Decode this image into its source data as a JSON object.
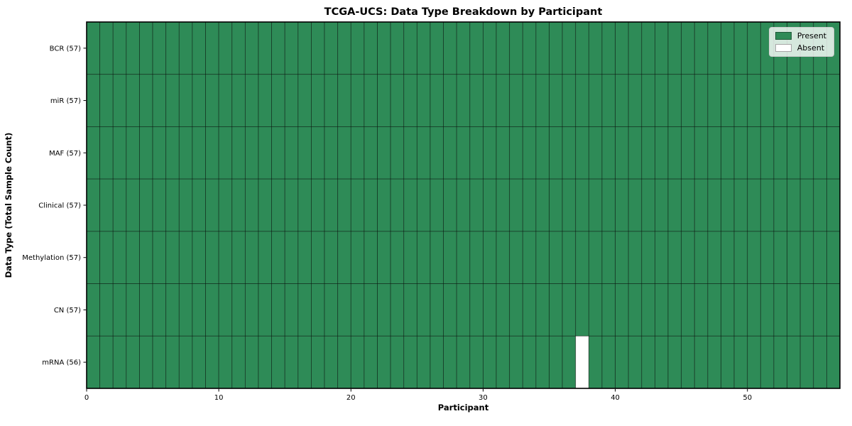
{
  "figure": {
    "background_color": "#ffffff"
  },
  "chart_data": {
    "type": "heatmap",
    "title": "TCGA-UCS: Data Type Breakdown by Participant",
    "xlabel": "Participant",
    "ylabel": "Data Type (Total Sample Count)",
    "x_ticks": [
      0,
      10,
      20,
      30,
      40,
      50
    ],
    "x_range": [
      0,
      57
    ],
    "n_participants": 57,
    "rows": [
      {
        "label": "BCR (57)",
        "data_type": "BCR",
        "total_samples": 57,
        "absent_participants": []
      },
      {
        "label": "miR (57)",
        "data_type": "miR",
        "total_samples": 57,
        "absent_participants": []
      },
      {
        "label": "MAF (57)",
        "data_type": "MAF",
        "total_samples": 57,
        "absent_participants": []
      },
      {
        "label": "Clinical (57)",
        "data_type": "Clinical",
        "total_samples": 57,
        "absent_participants": []
      },
      {
        "label": "Methylation (57)",
        "data_type": "Methylation",
        "total_samples": 57,
        "absent_participants": []
      },
      {
        "label": "CN (57)",
        "data_type": "CN",
        "total_samples": 57,
        "absent_participants": []
      },
      {
        "label": "mRNA (56)",
        "data_type": "mRNA",
        "total_samples": 56,
        "absent_participants": [
          37
        ]
      }
    ],
    "legend": {
      "position": "upper-right",
      "entries": [
        {
          "label": "Present",
          "color": "#2e8b57"
        },
        {
          "label": "Absent",
          "color": "#ffffff"
        }
      ]
    },
    "colors": {
      "present": "#2e8b57",
      "absent": "#ffffff",
      "cell_edge": "#000000",
      "spine": "#000000",
      "tick_text": "#000000"
    },
    "grid": "cell-borders"
  }
}
